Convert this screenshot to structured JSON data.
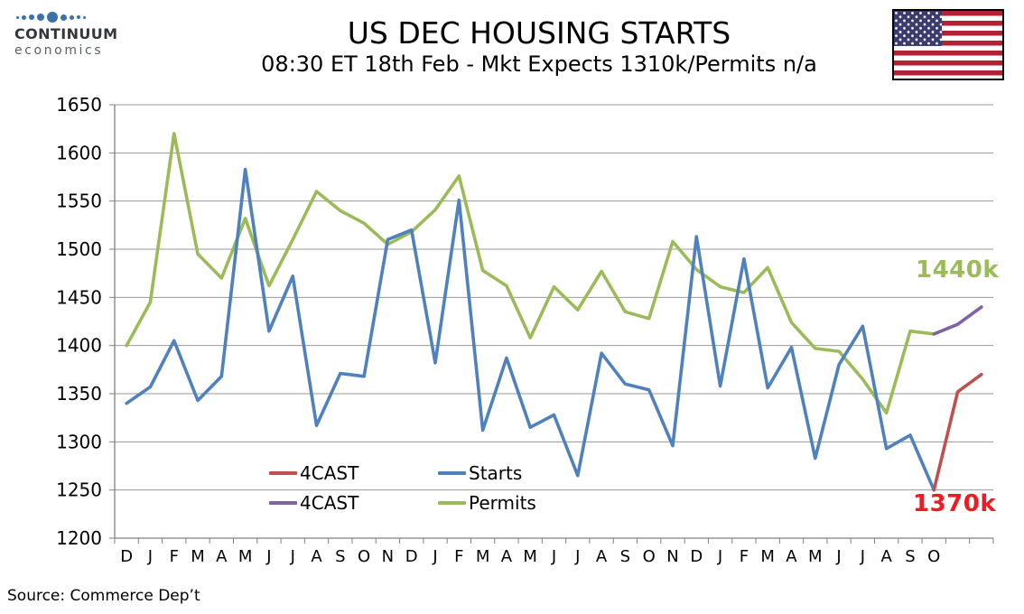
{
  "header": {
    "logo": {
      "line1": "CONTINUUM",
      "line2": "economics",
      "dot_color": "#3a72a8"
    },
    "title": "US DEC HOUSING STARTS",
    "subtitle": "08:30 ET 18th Feb - Mkt Expects 1310k/Permits n/a"
  },
  "legend": {
    "items": [
      {
        "label": "4CAST",
        "color": "#C0504D"
      },
      {
        "label": "Starts",
        "color": "#4F81BD"
      },
      {
        "label": "4CAST",
        "color": "#8064A2"
      },
      {
        "label": "Permits",
        "color": "#9BBB59"
      }
    ]
  },
  "annotations": {
    "permits_forecast": {
      "text": "1440k",
      "color": "#9BBB59"
    },
    "starts_forecast": {
      "text": "1370k",
      "color": "#ED1C24"
    }
  },
  "source": "Source: Commerce Dep’t",
  "chart_data": {
    "type": "line",
    "title": "US DEC HOUSING STARTS",
    "subtitle": "08:30 ET 18th Feb - Mkt Expects 1310k/Permits n/a",
    "ylim": [
      1200,
      1650
    ],
    "y_tick_step": 50,
    "y_ticks": [
      1200,
      1250,
      1300,
      1350,
      1400,
      1450,
      1500,
      1550,
      1600,
      1650
    ],
    "x_tick_labels": [
      "D",
      "J",
      "F",
      "M",
      "A",
      "M",
      "J",
      "J",
      "A",
      "S",
      "O",
      "N",
      "D",
      "J",
      "F",
      "M",
      "A",
      "M",
      "J",
      "J",
      "A",
      "S",
      "O",
      "N",
      "D",
      "J",
      "F",
      "M",
      "A",
      "M",
      "J",
      "J",
      "A",
      "S",
      "O"
    ],
    "n_slots": 37,
    "grid": true,
    "grid_color": "#999999",
    "axis_color": "#808080",
    "legend_position": "inside-bottom-left",
    "series": [
      {
        "name": "Permits",
        "color": "#9BBB59",
        "start_index": 0,
        "values": [
          1400,
          1445,
          1620,
          1495,
          1470,
          1532,
          1462,
          1510,
          1560,
          1540,
          1527,
          1505,
          1518,
          1541,
          1576,
          1478,
          1462,
          1408,
          1461,
          1437,
          1477,
          1435,
          1428,
          1508,
          1479,
          1461,
          1455,
          1481,
          1424,
          1397,
          1394,
          1365,
          1330,
          1415,
          1412
        ]
      },
      {
        "name": "Starts",
        "color": "#4F81BD",
        "start_index": 0,
        "values": [
          1340,
          1357,
          1405,
          1343,
          1368,
          1583,
          1415,
          1472,
          1317,
          1371,
          1368,
          1510,
          1520,
          1382,
          1551,
          1312,
          1387,
          1315,
          1328,
          1265,
          1392,
          1360,
          1354,
          1296,
          1513,
          1358,
          1490,
          1356,
          1398,
          1283,
          1380,
          1420,
          1293,
          1307,
          1250
        ]
      },
      {
        "name": "4CAST",
        "role": "permits-forecast",
        "color": "#8064A2",
        "start_index": 34,
        "values": [
          1412,
          1422,
          1440
        ]
      },
      {
        "name": "4CAST",
        "role": "starts-forecast",
        "color": "#C0504D",
        "start_index": 34,
        "values": [
          1250,
          1352,
          1370
        ]
      }
    ]
  }
}
